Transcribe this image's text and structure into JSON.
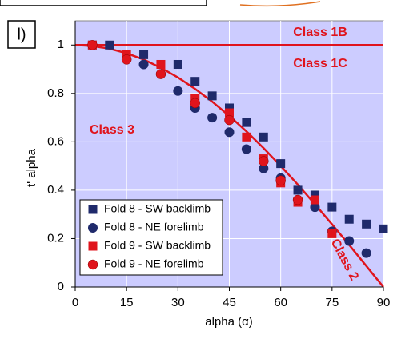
{
  "chart_data": {
    "type": "scatter",
    "panel_label": "l)",
    "xlabel": "alpha (α)",
    "ylabel": "t' alpha",
    "xlim": [
      0,
      90
    ],
    "xticks": [
      0,
      15,
      30,
      45,
      60,
      75,
      90
    ],
    "ylim": [
      0,
      1.1
    ],
    "yticks": [
      0,
      0.2,
      0.4,
      0.6,
      0.8,
      1
    ],
    "background": "#ccccff",
    "grid": true,
    "legend": "lower left",
    "reference_line": {
      "value": 1,
      "color": "#e0141c"
    },
    "curve": {
      "color": "#e0141c",
      "x": [
        0,
        5,
        10,
        15,
        20,
        25,
        30,
        35,
        40,
        45,
        50,
        55,
        60,
        65,
        70,
        75,
        80,
        85,
        90
      ],
      "values": [
        1,
        0.996,
        0.985,
        0.966,
        0.94,
        0.906,
        0.866,
        0.819,
        0.766,
        0.707,
        0.643,
        0.574,
        0.5,
        0.423,
        0.342,
        0.259,
        0.174,
        0.087,
        0
      ]
    },
    "annotations": [
      "Class 1B",
      "Class 1C",
      "Class 3",
      "Class 2"
    ],
    "series": [
      {
        "name": "Fold 8 - SW backlimb",
        "color": "#1f2a6b",
        "marker": "square",
        "x": [
          5,
          10,
          20,
          30,
          35,
          40,
          45,
          50,
          55,
          60,
          65,
          70,
          75,
          80,
          85,
          90
        ],
        "values": [
          1.0,
          1.0,
          0.96,
          0.92,
          0.85,
          0.79,
          0.74,
          0.68,
          0.62,
          0.51,
          0.4,
          0.38,
          0.33,
          0.28,
          0.26,
          0.24
        ]
      },
      {
        "name": "Fold 8 - NE forelimb",
        "color": "#1f2a6b",
        "marker": "circle",
        "x": [
          20,
          30,
          35,
          40,
          45,
          50,
          55,
          60,
          65,
          70,
          75,
          80,
          85
        ],
        "values": [
          0.92,
          0.81,
          0.74,
          0.7,
          0.64,
          0.57,
          0.49,
          0.45,
          0.36,
          0.33,
          0.23,
          0.19,
          0.14
        ]
      },
      {
        "name": "Fold 9 - SW backlimb",
        "color": "#e0141c",
        "marker": "square",
        "x": [
          5,
          15,
          25,
          35,
          45,
          50,
          55,
          60,
          65,
          70,
          75
        ],
        "values": [
          1.0,
          0.96,
          0.92,
          0.78,
          0.72,
          0.62,
          0.53,
          0.43,
          0.35,
          0.36,
          0.22
        ]
      },
      {
        "name": "Fold 9 - NE forelimb",
        "color": "#e0141c",
        "marker": "circle",
        "x": [
          5,
          15,
          25,
          35,
          45,
          55,
          60,
          65
        ],
        "values": [
          1.0,
          0.94,
          0.88,
          0.76,
          0.69,
          0.52,
          0.44,
          0.36
        ]
      }
    ]
  }
}
